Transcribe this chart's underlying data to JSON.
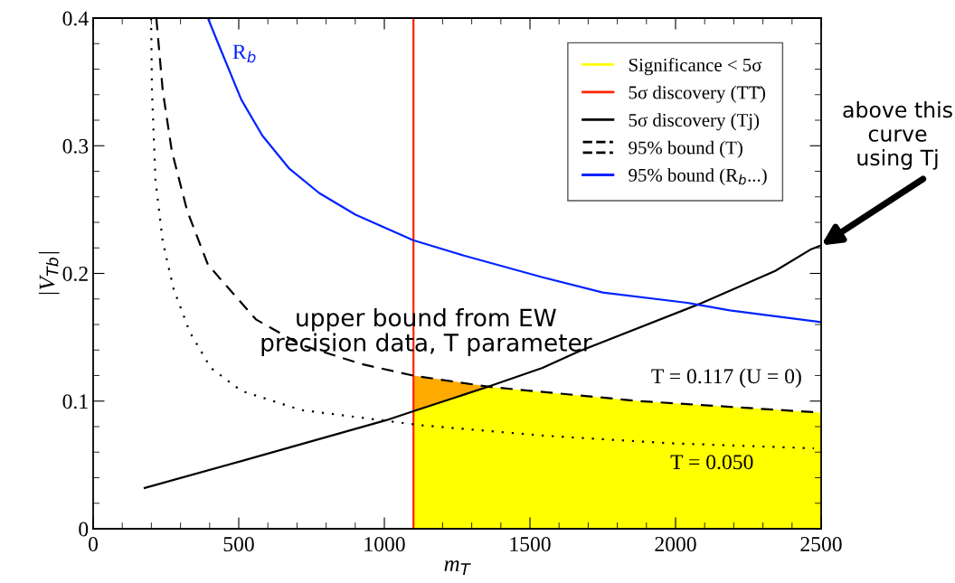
{
  "chart_data": {
    "type": "line",
    "xlabel": "m$_{T}$",
    "ylabel": "|V$_{Tb}$|",
    "xlim": [
      0,
      2500
    ],
    "ylim": [
      0,
      0.4
    ],
    "xticks": [
      0,
      {
        "value": 100,
        "label": null
      },
      {
        "value": 200,
        "label": null
      },
      {
        "value": 300,
        "label": null
      },
      {
        "value": 400,
        "label": null
      },
      500,
      {
        "value": 600,
        "label": null
      },
      {
        "value": 700,
        "label": null
      },
      {
        "value": 800,
        "label": null
      },
      {
        "value": 900,
        "label": null
      },
      1000,
      {
        "value": 1100,
        "label": null
      },
      {
        "value": 1200,
        "label": null
      },
      {
        "value": 1300,
        "label": null
      },
      {
        "value": 1400,
        "label": null
      },
      1500,
      {
        "value": 1600,
        "label": null
      },
      {
        "value": 1700,
        "label": null
      },
      {
        "value": 1800,
        "label": null
      },
      {
        "value": 1900,
        "label": null
      },
      2000,
      {
        "value": 2100,
        "label": null
      },
      {
        "value": 2200,
        "label": null
      },
      {
        "value": 2300,
        "label": null
      },
      {
        "value": 2400,
        "label": null
      },
      2500
    ],
    "yticks": [
      0,
      {
        "value": 0.02,
        "label": null
      },
      {
        "value": 0.04,
        "label": null
      },
      {
        "value": 0.06,
        "label": null
      },
      {
        "value": 0.08,
        "label": null
      },
      0.1,
      {
        "value": 0.12,
        "label": null
      },
      {
        "value": 0.14,
        "label": null
      },
      {
        "value": 0.16,
        "label": null
      },
      {
        "value": 0.18,
        "label": null
      },
      0.2,
      {
        "value": 0.22,
        "label": null
      },
      {
        "value": 0.24,
        "label": null
      },
      {
        "value": 0.26,
        "label": null
      },
      {
        "value": 0.28,
        "label": null
      },
      0.3,
      {
        "value": 0.32,
        "label": null
      },
      {
        "value": 0.34,
        "label": null
      },
      {
        "value": 0.36,
        "label": null
      },
      {
        "value": 0.38,
        "label": null
      },
      0.4
    ],
    "grid": false,
    "legend": "top right",
    "series": [
      {
        "type": "area",
        "color": "#ffaa00",
        "x": [
          1100,
          1250,
          1366
        ],
        "values": [
          0.12,
          0.115,
          0.111
        ]
      },
      {
        "name": "Significance < 5σ",
        "type": "area",
        "color": "#ffff00",
        "x": [
          1100,
          1250,
          1366,
          1543,
          1876,
          2497
        ],
        "values": [
          0.092,
          0.103,
          0.111,
          0.107,
          0.1,
          0.091
        ]
      },
      {
        "name": "5σ discovery (TT̄)",
        "color": "#ff2200",
        "x": [
          1100,
          1100
        ],
        "values": [
          0,
          0.4
        ],
        "line_style": "solid"
      },
      {
        "name": "5σ discovery (Tj)",
        "color": "#000000",
        "x": [
          177,
          509,
          1006,
          1099,
          1366,
          1543,
          1668,
          2081,
          2342,
          2466,
          2500
        ],
        "values": [
          0.032,
          0.053,
          0.085,
          0.092,
          0.112,
          0.126,
          0.139,
          0.176,
          0.202,
          0.219,
          0.222
        ],
        "line_style": "solid"
      },
      {
        "name": "95% bound (T)",
        "color": "#000000",
        "x": [
          217,
          239,
          270,
          323,
          394,
          447,
          559,
          714,
          922,
          1099,
          1366,
          1876,
          2497
        ],
        "values": [
          0.4,
          0.343,
          0.296,
          0.249,
          0.207,
          0.193,
          0.164,
          0.144,
          0.129,
          0.12,
          0.111,
          0.1,
          0.091
        ],
        "line_style": "dashed"
      },
      {
        "color": "#000000",
        "x": [
          199,
          202,
          214,
          239,
          276,
          332,
          404,
          509,
          714,
          1025,
          1130,
          1543,
          1978,
          2475
        ],
        "values": [
          0.4,
          0.343,
          0.273,
          0.225,
          0.188,
          0.154,
          0.126,
          0.108,
          0.093,
          0.084,
          0.081,
          0.073,
          0.067,
          0.063
        ],
        "line_style": "dotted"
      },
      {
        "name": "95% bound (R$_{b}$...)",
        "color": "#0022ff",
        "x": [
          394,
          435,
          509,
          581,
          674,
          776,
          901,
          1099,
          1273,
          1543,
          1750,
          2040,
          2186,
          2391,
          2497
        ],
        "values": [
          0.4,
          0.377,
          0.336,
          0.308,
          0.282,
          0.263,
          0.246,
          0.226,
          0.214,
          0.197,
          0.185,
          0.177,
          0.171,
          0.165,
          0.162
        ],
        "line_style": "solid"
      }
    ],
    "annotations": [
      "R$_{b}$",
      "upper bound from EW\nprecision data, T parameter",
      "T = 0.117 (U = 0)",
      "T = 0.050",
      "above this\ncurve\nusing Tj"
    ]
  }
}
